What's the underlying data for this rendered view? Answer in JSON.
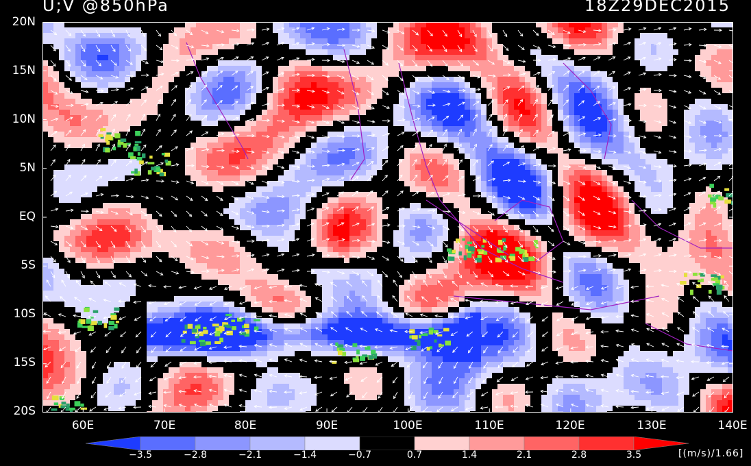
{
  "header": {
    "title": "U;V @850hPa",
    "datetime": "18Z29DEC2015"
  },
  "map": {
    "lon_range": [
      55,
      140
    ],
    "lat_range": [
      -20,
      20
    ],
    "y_ticks": [
      "20N",
      "15N",
      "10N",
      "5N",
      "EQ",
      "5S",
      "10S",
      "15S",
      "20S"
    ],
    "x_ticks": [
      "60E",
      "70E",
      "80E",
      "90E",
      "100E",
      "110E",
      "120E",
      "130E",
      "140E"
    ],
    "coastline_color": "#a020c0",
    "vector_color": "#ffffff",
    "variables": [
      "U",
      "V"
    ],
    "level": "850hPa"
  },
  "colorbar": {
    "levels": [
      "−3.5",
      "−2.8",
      "−2.1",
      "−1.4",
      "−0.7",
      "0.7",
      "1.4",
      "2.1",
      "2.8",
      "3.5"
    ],
    "colors": [
      "#1e3cff",
      "#5a6eff",
      "#8c96ff",
      "#b4baff",
      "#dcdcff",
      "#000000",
      "#ffd0d0",
      "#ff9a9a",
      "#ff6464",
      "#ff3030",
      "#ff0000"
    ],
    "units": "[(m/s)/1.66]"
  }
}
